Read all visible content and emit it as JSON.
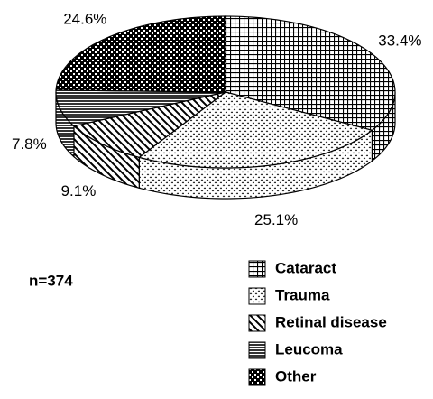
{
  "chart_data": {
    "type": "pie3d",
    "categories": [
      "Cataract",
      "Trauma",
      "Retinal disease",
      "Leucoma",
      "Other"
    ],
    "values": [
      33.4,
      25.1,
      9.1,
      7.8,
      24.6
    ],
    "value_labels": [
      "33.4%",
      "25.1%",
      "9.1%",
      "7.8%",
      "24.6%"
    ],
    "patterns": [
      "grid",
      "dots",
      "diagonal",
      "horizontal",
      "checker"
    ],
    "annotation": "n=374",
    "legend": "bottom-right"
  }
}
